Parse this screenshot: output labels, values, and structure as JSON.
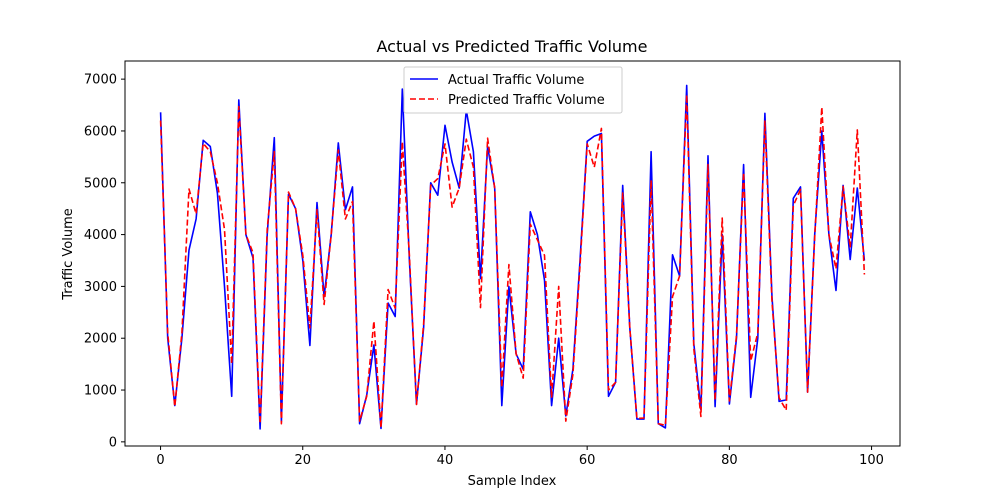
{
  "chart_data": {
    "type": "line",
    "title": "Actual vs Predicted Traffic Volume",
    "xlabel": "Sample Index",
    "ylabel": "Traffic Volume",
    "xlim": [
      -5,
      104
    ],
    "ylim": [
      -80,
      7350
    ],
    "xticks": [
      0,
      20,
      40,
      60,
      80,
      100
    ],
    "yticks": [
      0,
      1000,
      2000,
      3000,
      4000,
      5000,
      6000,
      7000
    ],
    "grid": false,
    "legend": "top-center",
    "x": [
      0,
      1,
      2,
      3,
      4,
      5,
      6,
      7,
      8,
      9,
      10,
      11,
      12,
      13,
      14,
      15,
      16,
      17,
      18,
      19,
      20,
      21,
      22,
      23,
      24,
      25,
      26,
      27,
      28,
      29,
      30,
      31,
      32,
      33,
      34,
      35,
      36,
      37,
      38,
      39,
      40,
      41,
      42,
      43,
      44,
      45,
      46,
      47,
      48,
      49,
      50,
      51,
      52,
      53,
      54,
      55,
      56,
      57,
      58,
      59,
      60,
      61,
      62,
      63,
      64,
      65,
      66,
      67,
      68,
      69,
      70,
      71,
      72,
      73,
      74,
      75,
      76,
      77,
      78,
      79,
      80,
      81,
      82,
      83,
      84,
      85,
      86,
      87,
      88,
      89,
      90,
      91,
      92,
      93,
      94,
      95,
      96,
      97,
      98,
      99
    ],
    "series": [
      {
        "name": "Actual Traffic Volume",
        "color": "#0000ff",
        "style": "solid",
        "values": [
          6360,
          2000,
          700,
          2000,
          3700,
          4300,
          5820,
          5700,
          4800,
          3000,
          880,
          6600,
          4000,
          3550,
          250,
          4000,
          5870,
          400,
          4780,
          4500,
          3500,
          1860,
          4620,
          2800,
          4000,
          5770,
          4480,
          4920,
          350,
          900,
          1870,
          260,
          2680,
          2420,
          6810,
          3500,
          730,
          2200,
          5000,
          4760,
          6110,
          5400,
          4900,
          6400,
          5600,
          3150,
          5700,
          4900,
          700,
          3000,
          1700,
          1400,
          4440,
          4000,
          3120,
          700,
          2000,
          500,
          1400,
          3500,
          5800,
          5900,
          5950,
          880,
          1150,
          4950,
          2200,
          440,
          440,
          5600,
          350,
          270,
          3610,
          3200,
          6880,
          1900,
          620,
          5520,
          680,
          4000,
          730,
          2000,
          5350,
          860,
          2000,
          6340,
          2800,
          780,
          810,
          4700,
          4920,
          960,
          4000,
          6000,
          4000,
          2920,
          4950,
          3520,
          4900,
          3500
        ]
      },
      {
        "name": "Predicted Traffic Volume",
        "color": "#ff0000",
        "style": "dashed",
        "values": [
          6200,
          2100,
          680,
          2100,
          4880,
          4400,
          5760,
          5600,
          5000,
          4100,
          1500,
          6470,
          4000,
          3650,
          350,
          4100,
          5600,
          350,
          4820,
          4500,
          3600,
          2200,
          4480,
          2650,
          4000,
          5630,
          4300,
          4640,
          400,
          880,
          2330,
          270,
          2940,
          2580,
          5790,
          3600,
          720,
          2270,
          4950,
          5080,
          5750,
          4530,
          4900,
          5840,
          5300,
          2590,
          5860,
          4900,
          1050,
          3420,
          1700,
          1230,
          4200,
          3900,
          3600,
          850,
          3000,
          400,
          1300,
          3400,
          5750,
          5300,
          6050,
          1000,
          1150,
          4800,
          2200,
          450,
          460,
          5050,
          350,
          320,
          2800,
          3200,
          6700,
          1800,
          490,
          5350,
          800,
          4320,
          790,
          2050,
          5200,
          1560,
          2100,
          6190,
          2700,
          850,
          610,
          4560,
          4870,
          960,
          3950,
          6460,
          4000,
          3340,
          4930,
          3750,
          6020,
          3230
        ]
      }
    ]
  }
}
